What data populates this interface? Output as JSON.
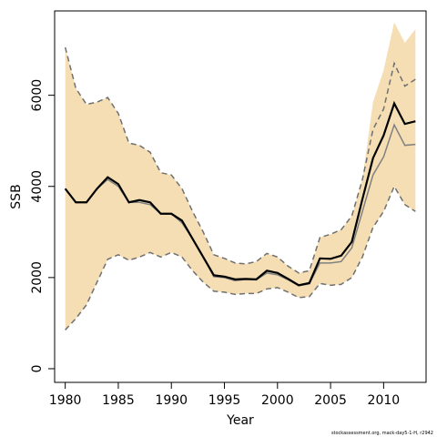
{
  "chart_data": {
    "type": "line",
    "xlabel": "Year",
    "ylabel": "SSB",
    "footnote": "stockassessment.org, mack-day5-1-H, r2942",
    "xlim": [
      1979,
      2014
    ],
    "ylim": [
      -300,
      7850
    ],
    "x_ticks": [
      1980,
      1985,
      1990,
      1995,
      2000,
      2005,
      2010
    ],
    "y_ticks": [
      0,
      2000,
      4000,
      6000
    ],
    "colors": {
      "band": "#F5DEB3",
      "estimate": "#000000",
      "comparison": "#808080",
      "bounds": "#707070"
    },
    "grid": false,
    "legend": "none",
    "x": [
      1980,
      1981,
      1982,
      1983,
      1984,
      1985,
      1986,
      1987,
      1988,
      1989,
      1990,
      1991,
      1992,
      1993,
      1994,
      1995,
      1996,
      1997,
      1998,
      1999,
      2000,
      2001,
      2002,
      2003,
      2004,
      2005,
      2006,
      2007,
      2008,
      2009,
      2010,
      2011,
      2012,
      2013
    ],
    "series": [
      {
        "role": "band",
        "upper": [
          7050,
          6150,
          5800,
          5850,
          5950,
          5600,
          4950,
          4900,
          4750,
          4300,
          4250,
          3950,
          3450,
          3000,
          2500,
          2420,
          2320,
          2300,
          2350,
          2530,
          2450,
          2250,
          2100,
          2150,
          2880,
          2950,
          3050,
          3350,
          4150,
          5250,
          5700,
          6700,
          6200,
          6350
        ],
        "lower": [
          850,
          1100,
          1400,
          1900,
          2400,
          2500,
          2380,
          2450,
          2550,
          2450,
          2550,
          2450,
          2150,
          1900,
          1700,
          1680,
          1630,
          1650,
          1650,
          1750,
          1780,
          1680,
          1560,
          1580,
          1870,
          1830,
          1850,
          2000,
          2450,
          3100,
          3450,
          4000,
          3600,
          3450
        ],
        "upper_band": [
          7050,
          6150,
          5800,
          5850,
          5950,
          5600,
          4950,
          4900,
          4750,
          4300,
          4250,
          3950,
          3450,
          3000,
          2500,
          2420,
          2320,
          2300,
          2350,
          2530,
          2450,
          2250,
          2100,
          2150,
          2880,
          2950,
          3050,
          3350,
          4150,
          5850,
          6550,
          7600,
          7150,
          7450
        ]
      },
      {
        "role": "estimate",
        "values": [
          3950,
          3650,
          3650,
          3950,
          4200,
          4050,
          3650,
          3700,
          3650,
          3400,
          3400,
          3250,
          2850,
          2450,
          2050,
          2020,
          1960,
          1970,
          1960,
          2150,
          2100,
          1970,
          1830,
          1880,
          2420,
          2410,
          2480,
          2780,
          3720,
          4620,
          5120,
          5820,
          5370,
          5430
        ]
      },
      {
        "role": "comparison",
        "values": [
          3950,
          3650,
          3650,
          3950,
          4150,
          4000,
          3650,
          3650,
          3600,
          3400,
          3400,
          3200,
          2850,
          2450,
          2020,
          2000,
          1930,
          1960,
          1950,
          2100,
          2060,
          1950,
          1820,
          1860,
          2320,
          2320,
          2350,
          2650,
          3450,
          4250,
          4650,
          5350,
          4900,
          4920
        ]
      }
    ]
  }
}
